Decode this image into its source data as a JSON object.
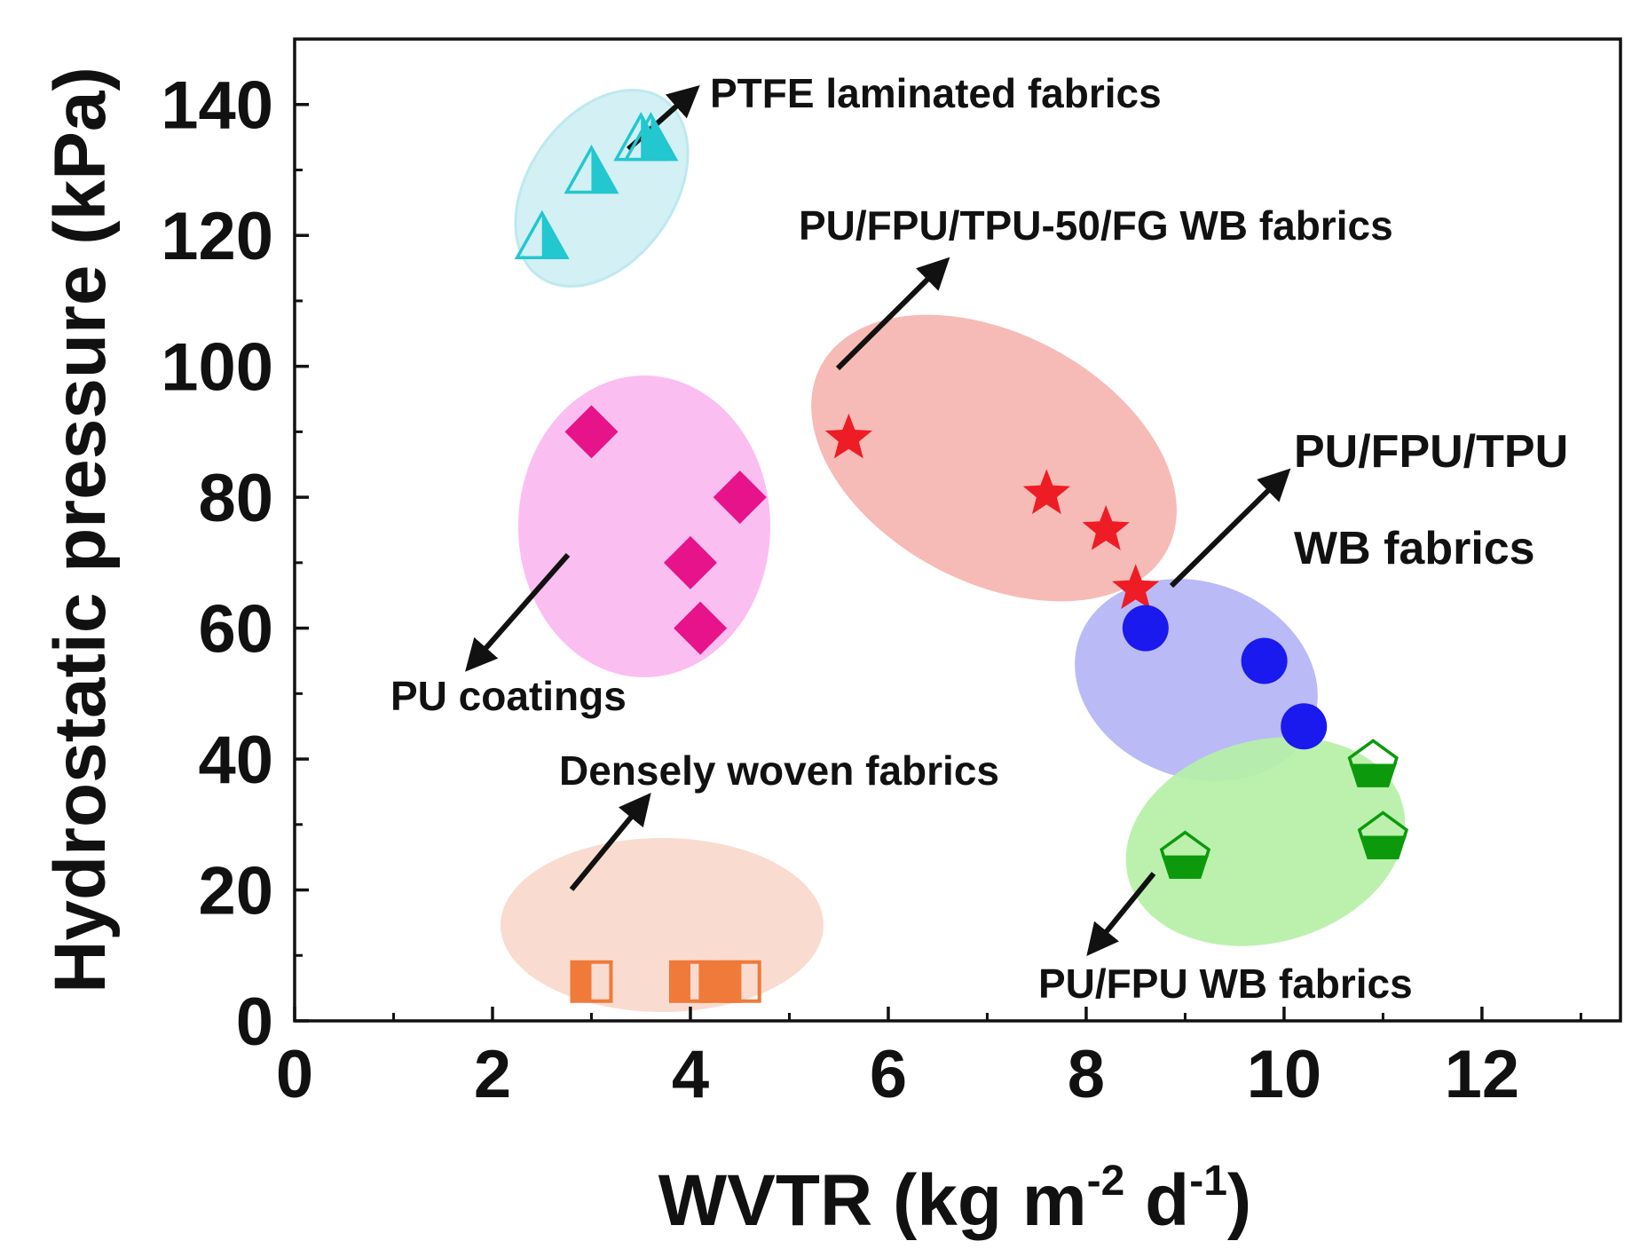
{
  "chart_data": {
    "type": "scatter",
    "xlabel": "WVTR (kg m",
    "xlabel_sup1": "-2",
    "xlabel_mid": " d",
    "xlabel_sup2": "-1",
    "xlabel_end": ")",
    "ylabel": "Hydrostatic pressure (kPa)",
    "xlim": [
      0,
      13.4
    ],
    "ylim": [
      0,
      150
    ],
    "xticks": [
      0,
      2,
      4,
      6,
      8,
      10,
      12
    ],
    "yticks": [
      0,
      20,
      40,
      60,
      80,
      100,
      120,
      140
    ],
    "grid": false,
    "series": [
      {
        "name": "PTFE laminated fabrics",
        "marker": "half-triangle",
        "color": "#22c7cf",
        "region_color": "#cfeff4",
        "region_edge": "#bde9ef",
        "points": [
          [
            2.5,
            120
          ],
          [
            3.0,
            130
          ],
          [
            3.5,
            135
          ],
          [
            3.6,
            135
          ]
        ]
      },
      {
        "name": "PU coatings",
        "marker": "diamond",
        "color": "#e6138a",
        "region_color": "#fbb9f0",
        "points": [
          [
            3.0,
            90
          ],
          [
            4.5,
            80
          ],
          [
            4.0,
            70
          ],
          [
            4.1,
            60
          ]
        ]
      },
      {
        "name": "PU/FPU/TPU-50/FG WB fabrics",
        "marker": "star",
        "color": "#ee1c24",
        "region_color": "#f5b5b0",
        "points": [
          [
            5.6,
            89
          ],
          [
            7.6,
            80.5
          ],
          [
            8.2,
            75
          ],
          [
            8.5,
            66
          ]
        ]
      },
      {
        "name": "PU/FPU/TPU WB fabrics",
        "marker": "circle",
        "color": "#1a1aee",
        "region_color": "#b4b4f5",
        "points": [
          [
            8.6,
            60
          ],
          [
            9.8,
            55
          ],
          [
            10.2,
            45
          ]
        ]
      },
      {
        "name": "PU/FPU WB fabrics",
        "marker": "half-pentagon",
        "color": "#0c9a0c",
        "region_color": "#b5f0a6",
        "points": [
          [
            9.0,
            25
          ],
          [
            10.9,
            39
          ],
          [
            11.0,
            28
          ]
        ]
      },
      {
        "name": "Densely woven fabrics",
        "marker": "half-square",
        "color": "#f07a3a",
        "region_color": "#f8d8cc",
        "points": [
          [
            3.0,
            6
          ],
          [
            4.0,
            6
          ],
          [
            4.3,
            6
          ],
          [
            4.5,
            6
          ]
        ]
      }
    ],
    "annotations": {
      "ptfe": "PTFE laminated fabrics",
      "tpu50": "PU/FPU/TPU-50/FG WB fabrics",
      "tpu_line1": "PU/FPU/TPU",
      "tpu_line2": "WB fabrics",
      "pu_coatings": "PU coatings",
      "densely": "Densely woven fabrics",
      "pufpu": "PU/FPU WB fabrics"
    }
  }
}
